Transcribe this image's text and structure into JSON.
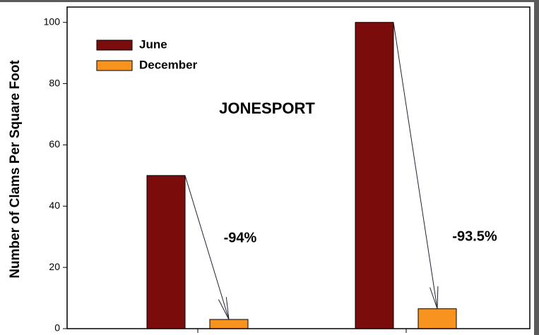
{
  "chart_data": {
    "type": "bar",
    "y_label": "Number of Clams Per Square Foot",
    "categories": [
      null,
      null
    ],
    "series": [
      {
        "name": "June",
        "color": "#7b0c0c",
        "values": [
          50,
          100
        ]
      },
      {
        "name": "December",
        "color": "#f7931e",
        "values": [
          3,
          6.5
        ]
      }
    ],
    "annotations": [
      "JONESPORT",
      "-94%",
      "-93.5%"
    ],
    "ylim": [
      0,
      105
    ],
    "yticks": [
      0,
      20,
      40,
      60,
      80,
      100
    ],
    "grid": false,
    "legend": "upper left"
  }
}
